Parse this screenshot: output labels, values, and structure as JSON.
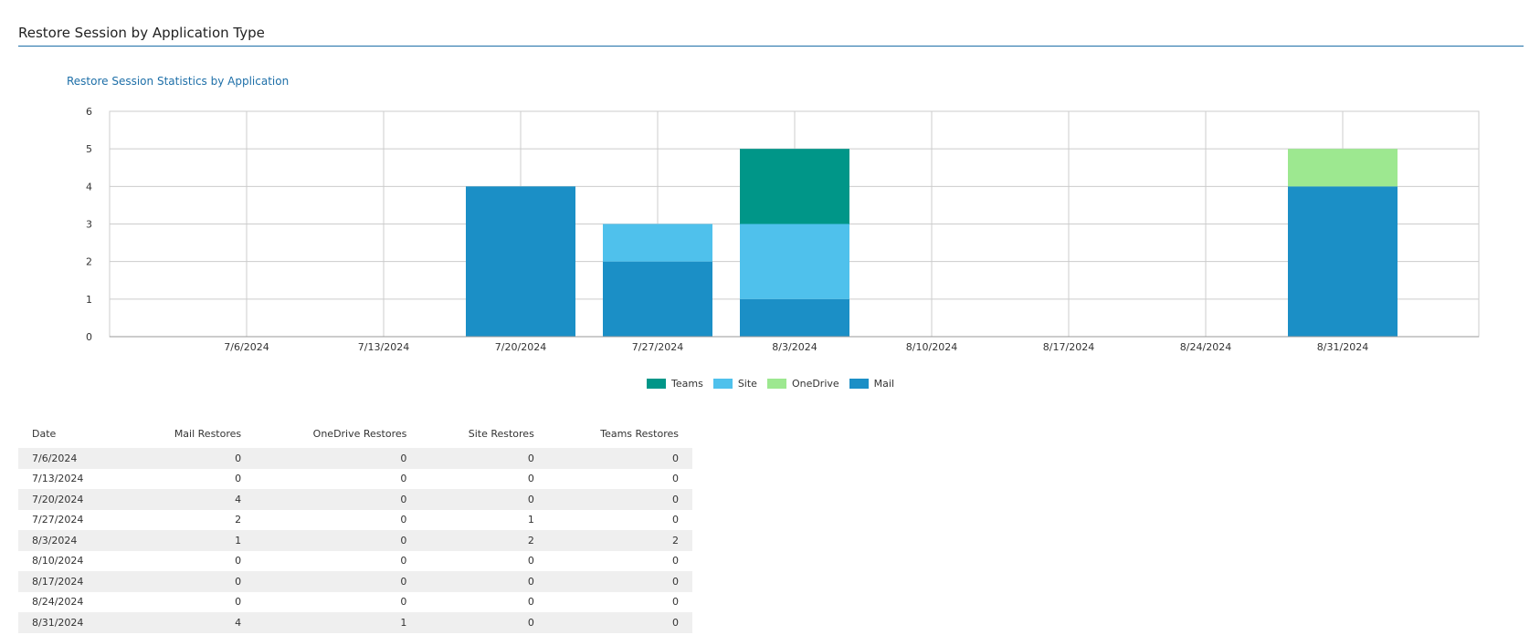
{
  "section": {
    "title": "Restore Session by Application Type"
  },
  "colors": {
    "Mail": "#1b8fc6",
    "Site": "#4fc1ec",
    "OneDrive": "#9de890",
    "Teams": "#009688",
    "grid": "#cccccc",
    "accent": "#1e6fa8"
  },
  "chart_data": {
    "type": "bar",
    "stacked": true,
    "title": "Restore Session Statistics by Application",
    "categories": [
      "7/6/2024",
      "7/13/2024",
      "7/20/2024",
      "7/27/2024",
      "8/3/2024",
      "8/10/2024",
      "8/17/2024",
      "8/24/2024",
      "8/31/2024"
    ],
    "series": [
      {
        "name": "Mail",
        "values": [
          0,
          0,
          4,
          2,
          1,
          0,
          0,
          0,
          4
        ]
      },
      {
        "name": "OneDrive",
        "values": [
          0,
          0,
          0,
          0,
          0,
          0,
          0,
          0,
          1
        ]
      },
      {
        "name": "Site",
        "values": [
          0,
          0,
          0,
          1,
          2,
          0,
          0,
          0,
          0
        ]
      },
      {
        "name": "Teams",
        "values": [
          0,
          0,
          0,
          0,
          2,
          0,
          0,
          0,
          0
        ]
      }
    ],
    "ylim": [
      0,
      6
    ],
    "yticks": [
      "0",
      "1",
      "2",
      "3",
      "4",
      "5",
      "6"
    ],
    "grid": true,
    "legend": {
      "placement": "bottom-center",
      "order": [
        "Teams",
        "Site",
        "OneDrive",
        "Mail"
      ]
    }
  },
  "table": {
    "headers": [
      "Date",
      "Mail Restores",
      "OneDrive Restores",
      "Site Restores",
      "Teams Restores"
    ],
    "rows": [
      [
        "7/6/2024",
        "0",
        "0",
        "0",
        "0"
      ],
      [
        "7/13/2024",
        "0",
        "0",
        "0",
        "0"
      ],
      [
        "7/20/2024",
        "4",
        "0",
        "0",
        "0"
      ],
      [
        "7/27/2024",
        "2",
        "0",
        "1",
        "0"
      ],
      [
        "8/3/2024",
        "1",
        "0",
        "2",
        "2"
      ],
      [
        "8/10/2024",
        "0",
        "0",
        "0",
        "0"
      ],
      [
        "8/17/2024",
        "0",
        "0",
        "0",
        "0"
      ],
      [
        "8/24/2024",
        "0",
        "0",
        "0",
        "0"
      ],
      [
        "8/31/2024",
        "4",
        "1",
        "0",
        "0"
      ]
    ]
  }
}
